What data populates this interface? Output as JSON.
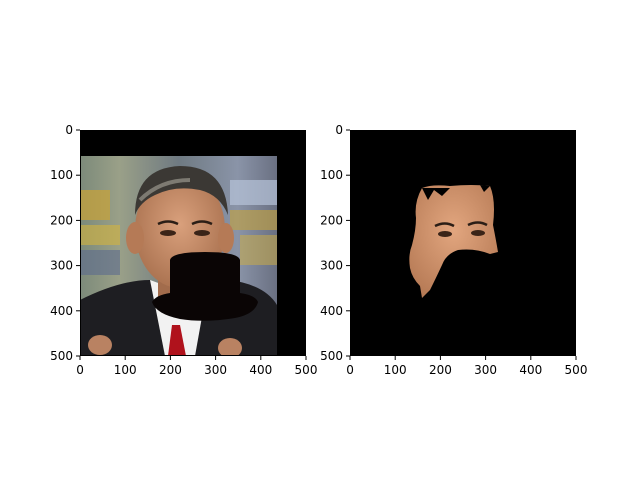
{
  "figure": {
    "panels": [
      {
        "name": "original-with-mask",
        "x_ticks": [
          "0",
          "100",
          "200",
          "300",
          "400",
          "500"
        ],
        "y_ticks": [
          "0",
          "100",
          "200",
          "300",
          "400",
          "500"
        ],
        "content": "photo-of-man-in-suit-with-black-hat-shaped-mask-over-lower-face"
      },
      {
        "name": "segmented-face",
        "x_ticks": [
          "0",
          "100",
          "200",
          "300",
          "400",
          "500"
        ],
        "y_ticks": [
          "0",
          "100",
          "200",
          "300",
          "400",
          "500"
        ],
        "content": "skin-segmentation-of-face-on-black-background"
      }
    ],
    "colors": {
      "mask": "#0a0505",
      "background": "#000000",
      "suit": "#1e1e22",
      "tie": "#b0121c",
      "skin": "#c98e6a",
      "hair": "#3b3834"
    }
  }
}
